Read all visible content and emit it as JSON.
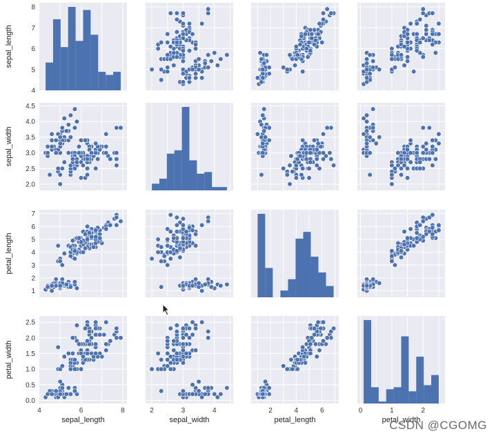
{
  "chart_data": {
    "type": "scatter",
    "title": "",
    "variables": [
      "sepal_length",
      "sepal_width",
      "petal_length",
      "petal_width"
    ],
    "axis_ranges": {
      "sepal_length": [
        4.0,
        8.2
      ],
      "sepal_width": [
        1.8,
        4.6
      ],
      "petal_length": [
        0.5,
        7.3
      ],
      "petal_width": [
        -0.1,
        2.7
      ]
    },
    "ticks": {
      "sepal_length": [
        4,
        5,
        6,
        7,
        8
      ],
      "sepal_width": [
        2.0,
        2.5,
        3.0,
        3.5,
        4.0,
        4.5
      ],
      "petal_length": [
        1,
        2,
        3,
        4,
        5,
        6,
        7
      ],
      "petal_width": [
        0.0,
        0.5,
        1.0,
        1.5,
        2.0,
        2.5
      ]
    },
    "x_ticks": {
      "sepal_length": [
        4,
        6,
        8
      ],
      "sepal_width": [
        2,
        3,
        4
      ],
      "petal_length": [
        2,
        4,
        6
      ],
      "petal_width": [
        0,
        1,
        2
      ]
    },
    "grid": true,
    "marker_color": "#4c72b0",
    "background_color": "#eaeaf2",
    "histograms": {
      "sepal_length": {
        "edges": [
          4.3,
          4.66,
          5.02,
          5.38,
          5.74,
          6.1,
          6.46,
          6.82,
          7.18,
          7.54,
          7.9
        ],
        "counts": [
          9,
          23,
          14,
          27,
          16,
          26,
          18,
          6,
          5,
          6
        ]
      },
      "sepal_width": {
        "edges": [
          2.0,
          2.24,
          2.48,
          2.72,
          2.96,
          3.2,
          3.44,
          3.68,
          3.92,
          4.16,
          4.4
        ],
        "counts": [
          4,
          7,
          22,
          24,
          50,
          18,
          10,
          11,
          2,
          2
        ]
      },
      "petal_length": {
        "edges": [
          1.0,
          1.59,
          2.18,
          2.77,
          3.36,
          3.95,
          4.54,
          5.13,
          5.72,
          6.31,
          6.9
        ],
        "counts": [
          37,
          13,
          0,
          3,
          8,
          26,
          29,
          18,
          11,
          5
        ]
      },
      "petal_width": {
        "edges": [
          0.1,
          0.34,
          0.58,
          0.82,
          1.06,
          1.3,
          1.54,
          1.78,
          2.02,
          2.26,
          2.5
        ],
        "counts": [
          41,
          8,
          1,
          7,
          8,
          33,
          6,
          23,
          9,
          14
        ]
      }
    },
    "points": [
      [
        5.1,
        3.5,
        1.4,
        0.2
      ],
      [
        4.9,
        3.0,
        1.4,
        0.2
      ],
      [
        4.7,
        3.2,
        1.3,
        0.2
      ],
      [
        4.6,
        3.1,
        1.5,
        0.2
      ],
      [
        5.0,
        3.6,
        1.4,
        0.2
      ],
      [
        5.4,
        3.9,
        1.7,
        0.4
      ],
      [
        4.6,
        3.4,
        1.4,
        0.3
      ],
      [
        5.0,
        3.4,
        1.5,
        0.2
      ],
      [
        4.4,
        2.9,
        1.4,
        0.2
      ],
      [
        4.9,
        3.1,
        1.5,
        0.1
      ],
      [
        5.4,
        3.7,
        1.5,
        0.2
      ],
      [
        4.8,
        3.4,
        1.6,
        0.2
      ],
      [
        4.8,
        3.0,
        1.4,
        0.1
      ],
      [
        4.3,
        3.0,
        1.1,
        0.1
      ],
      [
        5.8,
        4.0,
        1.2,
        0.2
      ],
      [
        5.7,
        4.4,
        1.5,
        0.4
      ],
      [
        5.4,
        3.9,
        1.3,
        0.4
      ],
      [
        5.1,
        3.5,
        1.4,
        0.3
      ],
      [
        5.7,
        3.8,
        1.7,
        0.3
      ],
      [
        5.1,
        3.8,
        1.5,
        0.3
      ],
      [
        5.4,
        3.4,
        1.7,
        0.2
      ],
      [
        5.1,
        3.7,
        1.5,
        0.4
      ],
      [
        4.6,
        3.6,
        1.0,
        0.2
      ],
      [
        5.1,
        3.3,
        1.7,
        0.5
      ],
      [
        4.8,
        3.4,
        1.9,
        0.2
      ],
      [
        5.0,
        3.0,
        1.6,
        0.2
      ],
      [
        5.0,
        3.4,
        1.6,
        0.4
      ],
      [
        5.2,
        3.5,
        1.5,
        0.2
      ],
      [
        5.2,
        3.4,
        1.4,
        0.2
      ],
      [
        4.7,
        3.2,
        1.6,
        0.2
      ],
      [
        4.8,
        3.1,
        1.6,
        0.2
      ],
      [
        5.4,
        3.4,
        1.5,
        0.4
      ],
      [
        5.2,
        4.1,
        1.5,
        0.1
      ],
      [
        5.5,
        4.2,
        1.4,
        0.2
      ],
      [
        4.9,
        3.1,
        1.5,
        0.2
      ],
      [
        5.0,
        3.2,
        1.2,
        0.2
      ],
      [
        5.5,
        3.5,
        1.3,
        0.2
      ],
      [
        4.9,
        3.6,
        1.4,
        0.1
      ],
      [
        4.4,
        3.0,
        1.3,
        0.2
      ],
      [
        5.1,
        3.4,
        1.5,
        0.2
      ],
      [
        5.0,
        3.5,
        1.3,
        0.3
      ],
      [
        4.5,
        2.3,
        1.3,
        0.3
      ],
      [
        4.4,
        3.2,
        1.3,
        0.2
      ],
      [
        5.0,
        3.5,
        1.6,
        0.6
      ],
      [
        5.1,
        3.8,
        1.9,
        0.4
      ],
      [
        4.8,
        3.0,
        1.4,
        0.3
      ],
      [
        5.1,
        3.8,
        1.6,
        0.2
      ],
      [
        4.6,
        3.2,
        1.4,
        0.2
      ],
      [
        5.3,
        3.7,
        1.5,
        0.2
      ],
      [
        5.0,
        3.3,
        1.4,
        0.2
      ],
      [
        7.0,
        3.2,
        4.7,
        1.4
      ],
      [
        6.4,
        3.2,
        4.5,
        1.5
      ],
      [
        6.9,
        3.1,
        4.9,
        1.5
      ],
      [
        5.5,
        2.3,
        4.0,
        1.3
      ],
      [
        6.5,
        2.8,
        4.6,
        1.5
      ],
      [
        5.7,
        2.8,
        4.5,
        1.3
      ],
      [
        6.3,
        3.3,
        4.7,
        1.6
      ],
      [
        4.9,
        2.4,
        3.3,
        1.0
      ],
      [
        6.6,
        2.9,
        4.6,
        1.3
      ],
      [
        5.2,
        2.7,
        3.9,
        1.4
      ],
      [
        5.0,
        2.0,
        3.5,
        1.0
      ],
      [
        5.9,
        3.0,
        4.2,
        1.5
      ],
      [
        6.0,
        2.2,
        4.0,
        1.0
      ],
      [
        6.1,
        2.9,
        4.7,
        1.4
      ],
      [
        5.6,
        2.9,
        3.6,
        1.3
      ],
      [
        6.7,
        3.1,
        4.4,
        1.4
      ],
      [
        5.6,
        3.0,
        4.5,
        1.5
      ],
      [
        5.8,
        2.7,
        4.1,
        1.0
      ],
      [
        6.2,
        2.2,
        4.5,
        1.5
      ],
      [
        5.6,
        2.5,
        3.9,
        1.1
      ],
      [
        5.9,
        3.2,
        4.8,
        1.8
      ],
      [
        6.1,
        2.8,
        4.0,
        1.3
      ],
      [
        6.3,
        2.5,
        4.9,
        1.5
      ],
      [
        6.1,
        2.8,
        4.7,
        1.2
      ],
      [
        6.4,
        2.9,
        4.3,
        1.3
      ],
      [
        6.6,
        3.0,
        4.4,
        1.4
      ],
      [
        6.8,
        2.8,
        4.8,
        1.4
      ],
      [
        6.7,
        3.0,
        5.0,
        1.7
      ],
      [
        6.0,
        2.9,
        4.5,
        1.5
      ],
      [
        5.7,
        2.6,
        3.5,
        1.0
      ],
      [
        5.5,
        2.4,
        3.8,
        1.1
      ],
      [
        5.5,
        2.4,
        3.7,
        1.0
      ],
      [
        5.8,
        2.7,
        3.9,
        1.2
      ],
      [
        6.0,
        2.7,
        5.1,
        1.6
      ],
      [
        5.4,
        3.0,
        4.5,
        1.5
      ],
      [
        6.0,
        3.4,
        4.5,
        1.6
      ],
      [
        6.7,
        3.1,
        4.7,
        1.5
      ],
      [
        6.3,
        2.3,
        4.4,
        1.3
      ],
      [
        5.6,
        3.0,
        4.1,
        1.3
      ],
      [
        5.5,
        2.5,
        4.0,
        1.3
      ],
      [
        5.5,
        2.6,
        4.4,
        1.2
      ],
      [
        6.1,
        3.0,
        4.6,
        1.4
      ],
      [
        5.8,
        2.6,
        4.0,
        1.2
      ],
      [
        5.0,
        2.3,
        3.3,
        1.0
      ],
      [
        5.6,
        2.7,
        4.2,
        1.3
      ],
      [
        5.7,
        3.0,
        4.2,
        1.2
      ],
      [
        5.7,
        2.9,
        4.2,
        1.3
      ],
      [
        6.2,
        2.9,
        4.3,
        1.3
      ],
      [
        5.1,
        2.5,
        3.0,
        1.1
      ],
      [
        5.7,
        2.8,
        4.1,
        1.3
      ],
      [
        6.3,
        3.3,
        6.0,
        2.5
      ],
      [
        5.8,
        2.7,
        5.1,
        1.9
      ],
      [
        7.1,
        3.0,
        5.9,
        2.1
      ],
      [
        6.3,
        2.9,
        5.6,
        1.8
      ],
      [
        6.5,
        3.0,
        5.8,
        2.2
      ],
      [
        7.6,
        3.0,
        6.6,
        2.1
      ],
      [
        4.9,
        2.5,
        4.5,
        1.7
      ],
      [
        7.3,
        2.9,
        6.3,
        1.8
      ],
      [
        6.7,
        2.5,
        5.8,
        1.8
      ],
      [
        7.2,
        3.6,
        6.1,
        2.5
      ],
      [
        6.5,
        3.2,
        5.1,
        2.0
      ],
      [
        6.4,
        2.7,
        5.3,
        1.9
      ],
      [
        6.8,
        3.0,
        5.5,
        2.1
      ],
      [
        5.7,
        2.5,
        5.0,
        2.0
      ],
      [
        5.8,
        2.8,
        5.1,
        2.4
      ],
      [
        6.4,
        3.2,
        5.3,
        2.3
      ],
      [
        6.5,
        3.0,
        5.5,
        1.8
      ],
      [
        7.7,
        3.8,
        6.7,
        2.2
      ],
      [
        7.7,
        2.6,
        6.9,
        2.3
      ],
      [
        6.0,
        2.2,
        5.0,
        1.5
      ],
      [
        6.9,
        3.2,
        5.7,
        2.3
      ],
      [
        5.6,
        2.8,
        4.9,
        2.0
      ],
      [
        7.7,
        2.8,
        6.7,
        2.0
      ],
      [
        6.3,
        2.7,
        4.9,
        1.8
      ],
      [
        6.7,
        3.3,
        5.7,
        2.1
      ],
      [
        7.2,
        3.2,
        6.0,
        1.8
      ],
      [
        6.2,
        2.8,
        4.8,
        1.8
      ],
      [
        6.1,
        3.0,
        4.9,
        1.8
      ],
      [
        6.4,
        2.8,
        5.6,
        2.1
      ],
      [
        7.2,
        3.0,
        5.8,
        1.6
      ],
      [
        7.4,
        2.8,
        6.1,
        1.9
      ],
      [
        7.9,
        3.8,
        6.4,
        2.0
      ],
      [
        6.4,
        2.8,
        5.6,
        2.2
      ],
      [
        6.3,
        2.8,
        5.1,
        1.5
      ],
      [
        6.1,
        2.6,
        5.6,
        1.4
      ],
      [
        7.7,
        3.0,
        6.1,
        2.3
      ],
      [
        6.3,
        3.4,
        5.6,
        2.4
      ],
      [
        6.4,
        3.1,
        5.5,
        1.8
      ],
      [
        6.0,
        3.0,
        4.8,
        1.8
      ],
      [
        6.9,
        3.1,
        5.4,
        2.1
      ],
      [
        6.7,
        3.1,
        5.6,
        2.4
      ],
      [
        6.9,
        3.1,
        5.1,
        2.3
      ],
      [
        5.8,
        2.7,
        5.1,
        1.9
      ],
      [
        6.8,
        3.2,
        5.9,
        2.3
      ],
      [
        6.7,
        3.3,
        5.7,
        2.5
      ],
      [
        6.7,
        3.0,
        5.2,
        2.3
      ],
      [
        6.3,
        2.5,
        5.0,
        1.9
      ],
      [
        6.5,
        3.0,
        5.2,
        2.0
      ],
      [
        6.2,
        3.4,
        5.4,
        2.3
      ],
      [
        5.9,
        3.0,
        5.1,
        1.8
      ]
    ]
  },
  "watermark": "CSDN @CGOMG"
}
